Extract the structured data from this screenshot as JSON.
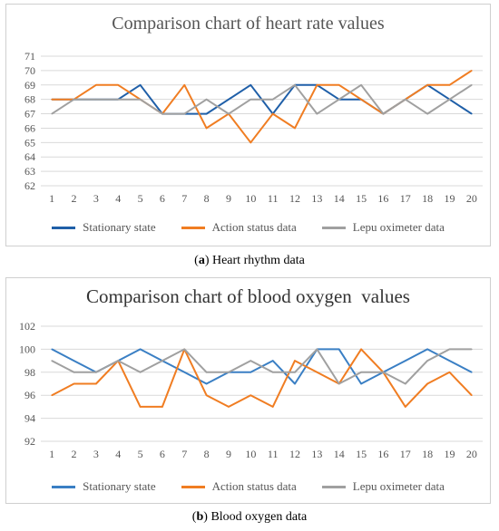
{
  "chart_data": [
    {
      "type": "line",
      "title": "Comparison chart of heart rate values",
      "categories": [
        "1",
        "2",
        "3",
        "4",
        "5",
        "6",
        "7",
        "8",
        "9",
        "10",
        "11",
        "12",
        "13",
        "14",
        "15",
        "16",
        "17",
        "18",
        "19",
        "20"
      ],
      "ylim": [
        62,
        71
      ],
      "yticks": [
        62,
        63,
        64,
        65,
        66,
        67,
        68,
        69,
        70,
        71
      ],
      "grid": true,
      "legend_position": "bottom",
      "series": [
        {
          "name": "Stationary state",
          "color": "#1f5fa8",
          "values": [
            68,
            68,
            68,
            68,
            69,
            67,
            67,
            67,
            68,
            69,
            67,
            69,
            69,
            68,
            68,
            67,
            68,
            69,
            68,
            67
          ]
        },
        {
          "name": "Action status data",
          "color": "#f07d22",
          "values": [
            68,
            68,
            69,
            69,
            68,
            67,
            69,
            66,
            67,
            65,
            67,
            66,
            69,
            69,
            68,
            67,
            68,
            69,
            69,
            70
          ]
        },
        {
          "name": "Lepu oximeter data",
          "color": "#a0a0a0",
          "values": [
            67,
            68,
            68,
            68,
            68,
            67,
            67,
            68,
            67,
            68,
            68,
            69,
            67,
            68,
            69,
            67,
            68,
            67,
            68,
            69
          ]
        }
      ]
    },
    {
      "type": "line",
      "title": "Comparison chart of blood oxygen  values",
      "categories": [
        "1",
        "2",
        "3",
        "4",
        "5",
        "6",
        "7",
        "8",
        "9",
        "10",
        "11",
        "12",
        "13",
        "14",
        "15",
        "16",
        "17",
        "18",
        "19",
        "20"
      ],
      "ylim": [
        92,
        102
      ],
      "yticks": [
        92,
        94,
        96,
        98,
        100,
        102
      ],
      "grid": true,
      "legend_position": "bottom",
      "series": [
        {
          "name": "Stationary state",
          "color": "#3a7fc4",
          "values": [
            100,
            99,
            98,
            99,
            100,
            99,
            98,
            97,
            98,
            98,
            99,
            97,
            100,
            100,
            97,
            98,
            99,
            100,
            99,
            98
          ]
        },
        {
          "name": "Action status data",
          "color": "#f07d22",
          "values": [
            96,
            97,
            97,
            99,
            95,
            95,
            100,
            96,
            95,
            96,
            95,
            99,
            98,
            97,
            100,
            98,
            95,
            97,
            98,
            96
          ]
        },
        {
          "name": "Lepu oximeter data",
          "color": "#a0a0a0",
          "values": [
            99,
            98,
            98,
            99,
            98,
            99,
            100,
            98,
            98,
            99,
            98,
            98,
            100,
            97,
            98,
            98,
            97,
            99,
            100,
            100
          ]
        }
      ]
    }
  ],
  "captions": [
    {
      "letter": "a",
      "text": "Heart rhythm data"
    },
    {
      "letter": "b",
      "text": "Blood oxygen data"
    }
  ]
}
